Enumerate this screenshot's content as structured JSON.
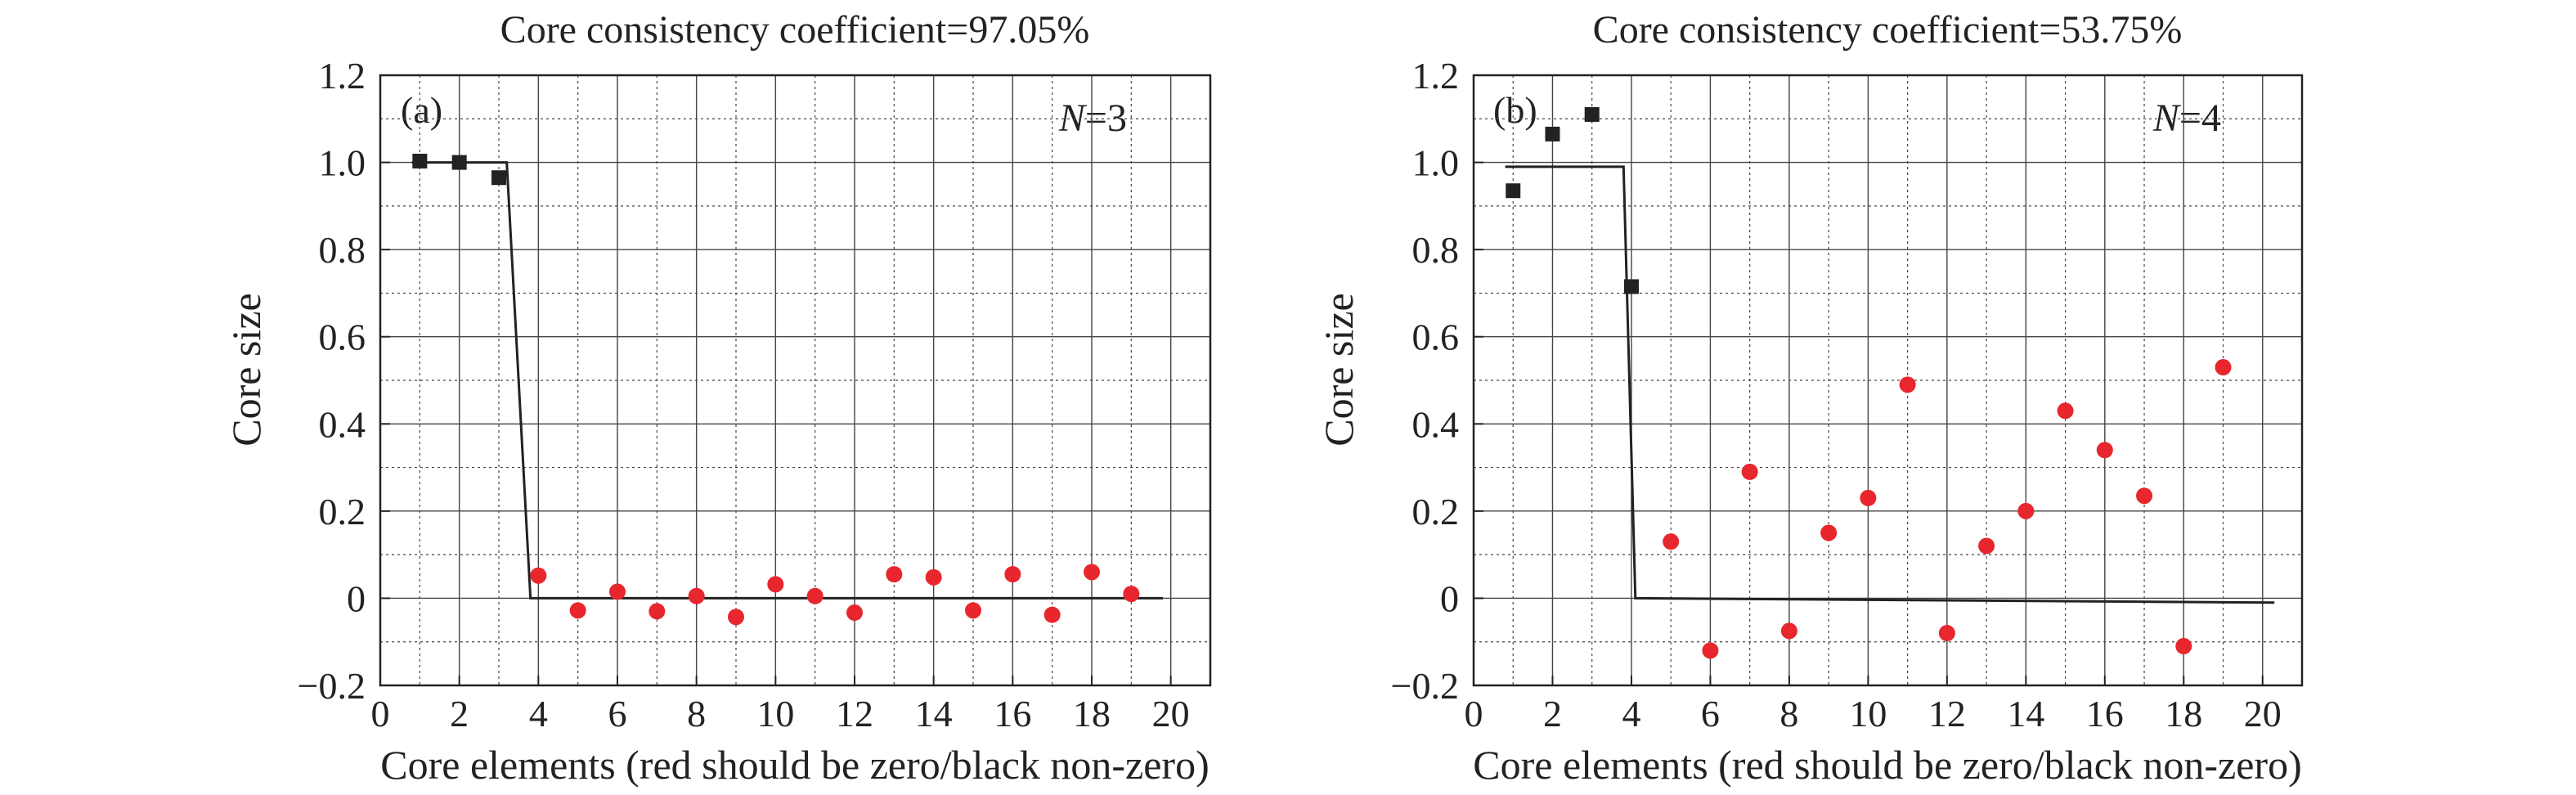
{
  "chart_data": [
    {
      "type": "scatter",
      "panel": "(a)",
      "title": "Core consistency coefficient=97.05%",
      "xlabel": "Core elements (red should be zero/black non-zero)",
      "ylabel": "Core size",
      "xlim": [
        0,
        21
      ],
      "ylim": [
        -0.2,
        1.2
      ],
      "xticks": [
        0,
        2,
        4,
        6,
        8,
        10,
        12,
        14,
        16,
        18,
        20
      ],
      "yticks": [
        -0.2,
        0,
        0.2,
        0.4,
        0.6,
        0.8,
        1.0,
        1.2
      ],
      "ytick_labels": [
        "−0.2",
        "0",
        "0.2",
        "0.4",
        "0.6",
        "0.8",
        "1.0",
        "1.2"
      ],
      "grid": true,
      "annotation": {
        "var": "N",
        "text": "=3"
      },
      "colors": {
        "black": "#222222",
        "red": "#e8262d"
      },
      "series": [
        {
          "points": [
            [
              1,
              1.003
            ],
            [
              2,
              1.0
            ],
            [
              3,
              0.965
            ]
          ],
          "marker": "square",
          "color": "black"
        },
        {
          "points": [
            [
              4,
              0.052
            ],
            [
              5,
              -0.028
            ],
            [
              6,
              0.015
            ],
            [
              7,
              -0.03
            ],
            [
              8,
              0.005
            ],
            [
              9,
              -0.043
            ],
            [
              10,
              0.032
            ],
            [
              11,
              0.005
            ],
            [
              12,
              -0.033
            ],
            [
              13,
              0.055
            ],
            [
              14,
              0.048
            ],
            [
              15,
              -0.028
            ],
            [
              16,
              0.055
            ],
            [
              17,
              -0.038
            ],
            [
              18,
              0.06
            ],
            [
              19,
              0.01
            ]
          ],
          "marker": "circle",
          "color": "red"
        }
      ],
      "ideal_line": [
        [
          0.8,
          1.0
        ],
        [
          3.2,
          1.0
        ],
        [
          3.8,
          0.0
        ],
        [
          19.8,
          0.0
        ]
      ]
    },
    {
      "type": "scatter",
      "panel": "(b)",
      "title": "Core consistency coefficient=53.75%",
      "xlabel": "Core elements (red should be zero/black non-zero)",
      "ylabel": "Core size",
      "xlim": [
        0,
        21
      ],
      "ylim": [
        -0.2,
        1.2
      ],
      "xticks": [
        0,
        2,
        4,
        6,
        8,
        10,
        12,
        14,
        16,
        18,
        20
      ],
      "yticks": [
        -0.2,
        0,
        0.2,
        0.4,
        0.6,
        0.8,
        1.0,
        1.2
      ],
      "ytick_labels": [
        "−0.2",
        "0",
        "0.2",
        "0.4",
        "0.6",
        "0.8",
        "1.0",
        "1.2"
      ],
      "grid": true,
      "annotation": {
        "var": "N",
        "text": "=4"
      },
      "colors": {
        "black": "#222222",
        "red": "#e8262d"
      },
      "series": [
        {
          "points": [
            [
              1,
              0.935
            ],
            [
              2,
              1.065
            ],
            [
              3,
              1.11
            ],
            [
              4,
              0.715
            ]
          ],
          "marker": "square",
          "color": "black"
        },
        {
          "points": [
            [
              5,
              0.13
            ],
            [
              6,
              -0.12
            ],
            [
              7,
              0.29
            ],
            [
              8,
              -0.075
            ],
            [
              9,
              0.15
            ],
            [
              10,
              0.23
            ],
            [
              11,
              0.49
            ],
            [
              12,
              -0.08
            ],
            [
              13,
              0.12
            ],
            [
              14,
              0.2
            ],
            [
              15,
              0.43
            ],
            [
              16,
              0.34
            ],
            [
              17,
              0.235
            ],
            [
              18,
              -0.11
            ],
            [
              19,
              0.53
            ]
          ],
          "marker": "circle",
          "color": "red"
        }
      ],
      "ideal_line": [
        [
          0.8,
          0.99
        ],
        [
          3.8,
          0.99
        ],
        [
          4.1,
          0.0
        ],
        [
          20.3,
          -0.01
        ]
      ]
    }
  ]
}
